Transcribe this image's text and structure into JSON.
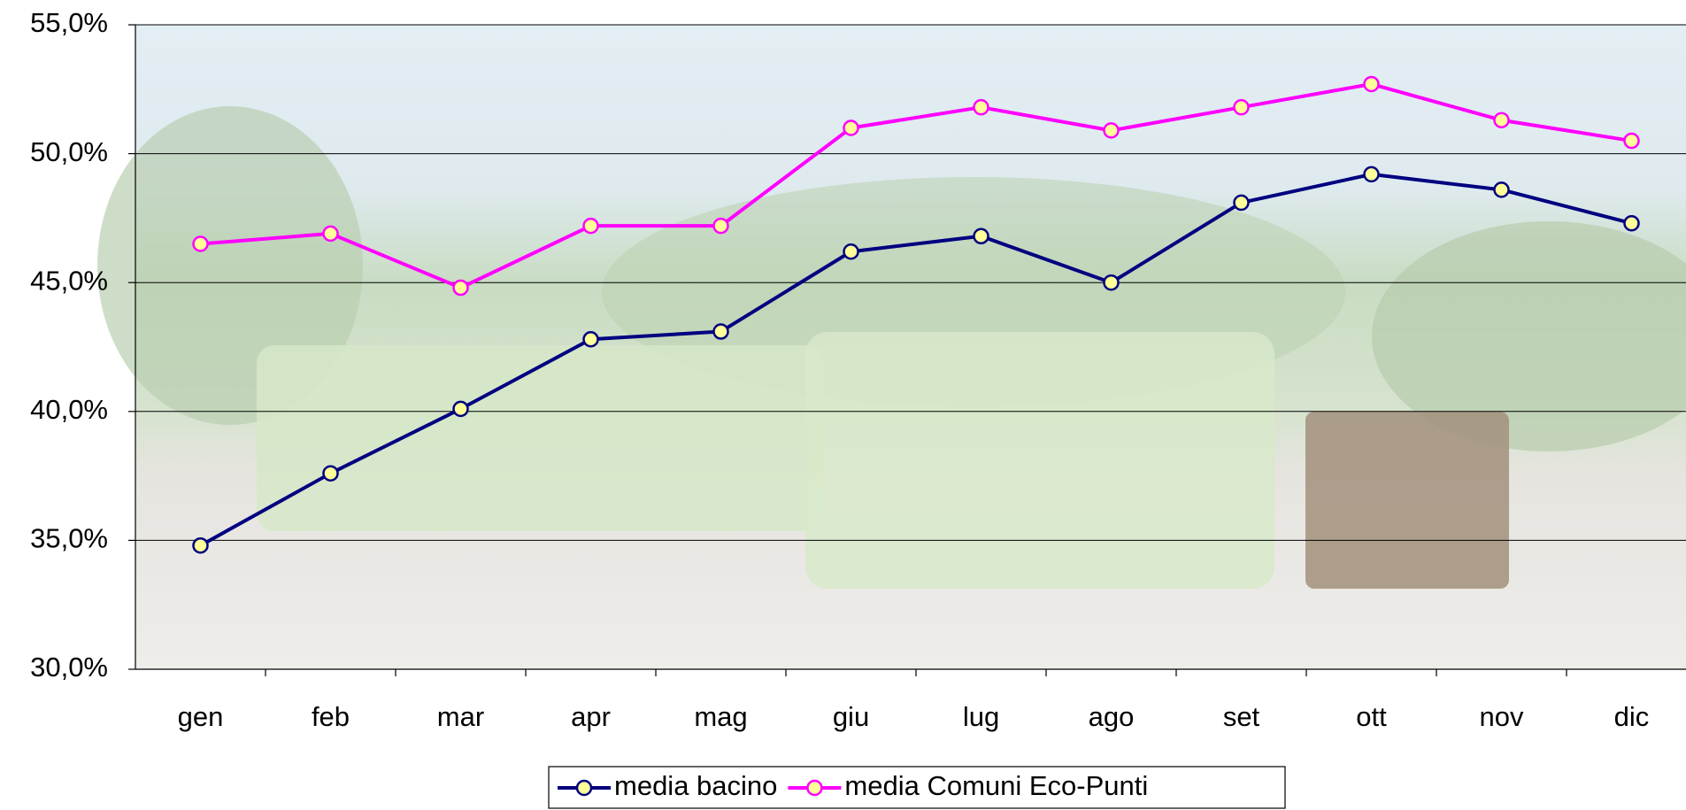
{
  "chart_data": {
    "type": "line",
    "categories": [
      "gen",
      "feb",
      "mar",
      "apr",
      "mag",
      "giu",
      "lug",
      "ago",
      "set",
      "ott",
      "nov",
      "dic"
    ],
    "series": [
      {
        "name": "media bacino",
        "color": "#000080",
        "marker_color": "#ffff99",
        "values": [
          34.8,
          37.6,
          40.1,
          42.8,
          43.1,
          46.2,
          46.8,
          45.0,
          48.1,
          49.2,
          48.6,
          47.3
        ]
      },
      {
        "name": "media Comuni Eco-Punti",
        "color": "#ff00ff",
        "marker_color": "#ffff99",
        "values": [
          46.5,
          46.9,
          44.8,
          47.2,
          47.2,
          51.0,
          51.8,
          50.9,
          51.8,
          52.7,
          51.3,
          50.5
        ]
      }
    ],
    "ylim": [
      30,
      55
    ],
    "yticks": [
      {
        "value": 30,
        "label": "30,0%"
      },
      {
        "value": 35,
        "label": "35,0%"
      },
      {
        "value": 40,
        "label": "40,0%"
      },
      {
        "value": 45,
        "label": "45,0%"
      },
      {
        "value": 50,
        "label": "50,0%"
      },
      {
        "value": 55,
        "label": "55,0%"
      }
    ],
    "grid": true,
    "legend": "bottom"
  }
}
